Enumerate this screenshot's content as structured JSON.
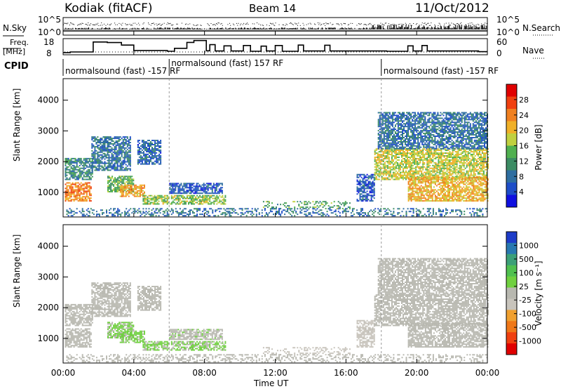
{
  "header": {
    "station": "Kodiak (fitACF)",
    "beam": "Beam 14",
    "date": "11/Oct/2012"
  },
  "top_panels": {
    "nsky_label": "N.Sky",
    "nsearch_label": "N.Search",
    "nsky_ticks": [
      "10^5",
      "10^0"
    ],
    "nsearch_ticks": [
      "10^5",
      "10^0"
    ],
    "freq_label_1": "Freq.",
    "freq_label_2": "[MHz]",
    "freq_ticks": [
      "18",
      "8"
    ],
    "nave_label": "Nave",
    "nave_ticks": [
      "60",
      "0"
    ],
    "cpid_label": "CPID",
    "cpid_segments": [
      {
        "label": "normalsound (fast) -157 RF",
        "start_h": 0,
        "end_h": 6
      },
      {
        "label": "normalsound (fast) 157 RF",
        "start_h": 6,
        "end_h": 18
      },
      {
        "label": "normalsound (fast) -157 RF",
        "start_h": 18,
        "end_h": 24
      }
    ]
  },
  "freq_series": {
    "name": "Freq.",
    "points": [
      [
        0,
        8.6
      ],
      [
        0.4,
        8.6
      ],
      [
        0.4,
        9.1
      ],
      [
        1.7,
        9.1
      ],
      [
        1.7,
        16.5
      ],
      [
        2.5,
        16.5
      ],
      [
        2.5,
        16.1
      ],
      [
        3.3,
        16.1
      ],
      [
        3.3,
        14.2
      ],
      [
        4,
        14.2
      ],
      [
        4,
        10.2
      ],
      [
        5.9,
        10.2
      ],
      [
        5.9,
        9.6
      ],
      [
        6.3,
        9.6
      ],
      [
        6.3,
        11.8
      ],
      [
        7,
        11.8
      ],
      [
        7,
        16.2
      ],
      [
        7.4,
        16.2
      ],
      [
        7.4,
        17.6
      ],
      [
        8.1,
        17.6
      ],
      [
        8.1,
        10
      ],
      [
        8.3,
        10
      ],
      [
        8.3,
        14.5
      ],
      [
        8.6,
        14.5
      ],
      [
        8.6,
        9.8
      ],
      [
        9.1,
        9.8
      ],
      [
        9.1,
        13.6
      ],
      [
        9.5,
        13.6
      ],
      [
        9.5,
        9.8
      ],
      [
        10.2,
        9.8
      ],
      [
        10.2,
        13.9
      ],
      [
        10.6,
        13.9
      ],
      [
        10.6,
        9.6
      ],
      [
        11.2,
        9.6
      ],
      [
        11.2,
        13.4
      ],
      [
        11.5,
        13.4
      ],
      [
        11.5,
        9.8
      ],
      [
        12,
        9.8
      ],
      [
        12,
        13.9
      ],
      [
        12.4,
        13.9
      ],
      [
        12.4,
        9.6
      ],
      [
        13.3,
        9.6
      ],
      [
        13.3,
        14.2
      ],
      [
        13.6,
        14.2
      ],
      [
        13.6,
        9.8
      ],
      [
        14.8,
        9.8
      ],
      [
        14.8,
        14.1
      ],
      [
        15.1,
        14.1
      ],
      [
        15.1,
        9.8
      ],
      [
        18.3,
        9.8
      ],
      [
        18.3,
        9.6
      ],
      [
        19.5,
        9.6
      ],
      [
        19.5,
        13.6
      ],
      [
        19.8,
        13.6
      ],
      [
        19.8,
        9.8
      ],
      [
        20.3,
        9.8
      ],
      [
        20.3,
        13.9
      ],
      [
        20.6,
        13.9
      ],
      [
        20.6,
        9.8
      ],
      [
        23.5,
        9.8
      ],
      [
        23.5,
        9.3
      ],
      [
        24,
        9.3
      ]
    ]
  },
  "power_colorbar": {
    "title": "Power [dB]",
    "ticks": [
      "28",
      "24",
      "20",
      "16",
      "12",
      "8",
      "4"
    ],
    "colors": [
      "#e00000",
      "#f04010",
      "#f08020",
      "#f0b028",
      "#c0d040",
      "#50b050",
      "#3c8c64",
      "#2e6ea0",
      "#1e4ec8",
      "#1010e0"
    ]
  },
  "velocity_colorbar": {
    "title": "Velocity [m s⁻¹]",
    "ticks": [
      "1000",
      "500",
      "100",
      "25",
      "-25",
      "-100",
      "-500",
      "-1000"
    ],
    "colors": [
      "#1e3cc8",
      "#2878b0",
      "#3ca078",
      "#50c050",
      "#70d040",
      "#b8b8b0",
      "#c8c4bc",
      "#f0a030",
      "#f07818",
      "#f04010",
      "#e00000"
    ]
  },
  "range_axis": {
    "label": "Slant Range [km]",
    "ticks": [
      "1000",
      "2000",
      "3000",
      "4000"
    ]
  },
  "time_axis": {
    "label": "Time UT",
    "ticks": [
      "00:00",
      "04:00",
      "08:00",
      "12:00",
      "16:00",
      "20:00",
      "00:00"
    ]
  },
  "chart_data": {
    "type": "heatmap",
    "title": "Kodiak (fitACF)  Beam 14  11/Oct/2012",
    "xlabel": "Time UT",
    "ylabel": "Slant Range [km]",
    "xlim": [
      0,
      24
    ],
    "ylim": [
      200,
      4700
    ],
    "power_clim": [
      0,
      32
    ],
    "velocity_clim": [
      -1200,
      1200
    ],
    "regions": [
      {
        "t0": 0.1,
        "t1": 1.6,
        "r0": 700,
        "r1": 1300,
        "power": 24,
        "velocity": 0
      },
      {
        "t0": 0.1,
        "t1": 1.7,
        "r0": 1400,
        "r1": 2100,
        "power": 10,
        "velocity": 5
      },
      {
        "t0": 1.6,
        "t1": 3.8,
        "r0": 1700,
        "r1": 2800,
        "power": 8,
        "velocity": 10
      },
      {
        "t0": 2.5,
        "t1": 4.0,
        "r0": 1000,
        "r1": 1500,
        "power": 14,
        "velocity": 130
      },
      {
        "t0": 3.2,
        "t1": 4.6,
        "r0": 850,
        "r1": 1250,
        "power": 22,
        "velocity": 140
      },
      {
        "t0": 4.2,
        "t1": 5.5,
        "r0": 1900,
        "r1": 2700,
        "power": 7,
        "velocity": 0
      },
      {
        "t0": 4.5,
        "t1": 9.2,
        "r0": 600,
        "r1": 900,
        "power": 16,
        "velocity": 120
      },
      {
        "t0": 6.0,
        "t1": 9.0,
        "r0": 950,
        "r1": 1300,
        "power": 6,
        "velocity": 80
      },
      {
        "t0": 11.3,
        "t1": 16.2,
        "r0": 450,
        "r1": 720,
        "power": 13,
        "velocity": -220
      },
      {
        "t0": 16.6,
        "t1": 17.6,
        "r0": 700,
        "r1": 1600,
        "power": 6,
        "velocity": -150
      },
      {
        "t0": 17.6,
        "t1": 24,
        "r0": 1400,
        "r1": 2400,
        "power": 18,
        "velocity": 0
      },
      {
        "t0": 19.5,
        "t1": 24,
        "r0": 700,
        "r1": 1500,
        "power": 21,
        "velocity": 0
      },
      {
        "t0": 17.8,
        "t1": 24,
        "r0": 2400,
        "r1": 3600,
        "power": 8,
        "velocity": 0
      },
      {
        "t0": 0.1,
        "t1": 24,
        "r0": 220,
        "r1": 450,
        "power": 8,
        "velocity": 20
      }
    ]
  }
}
